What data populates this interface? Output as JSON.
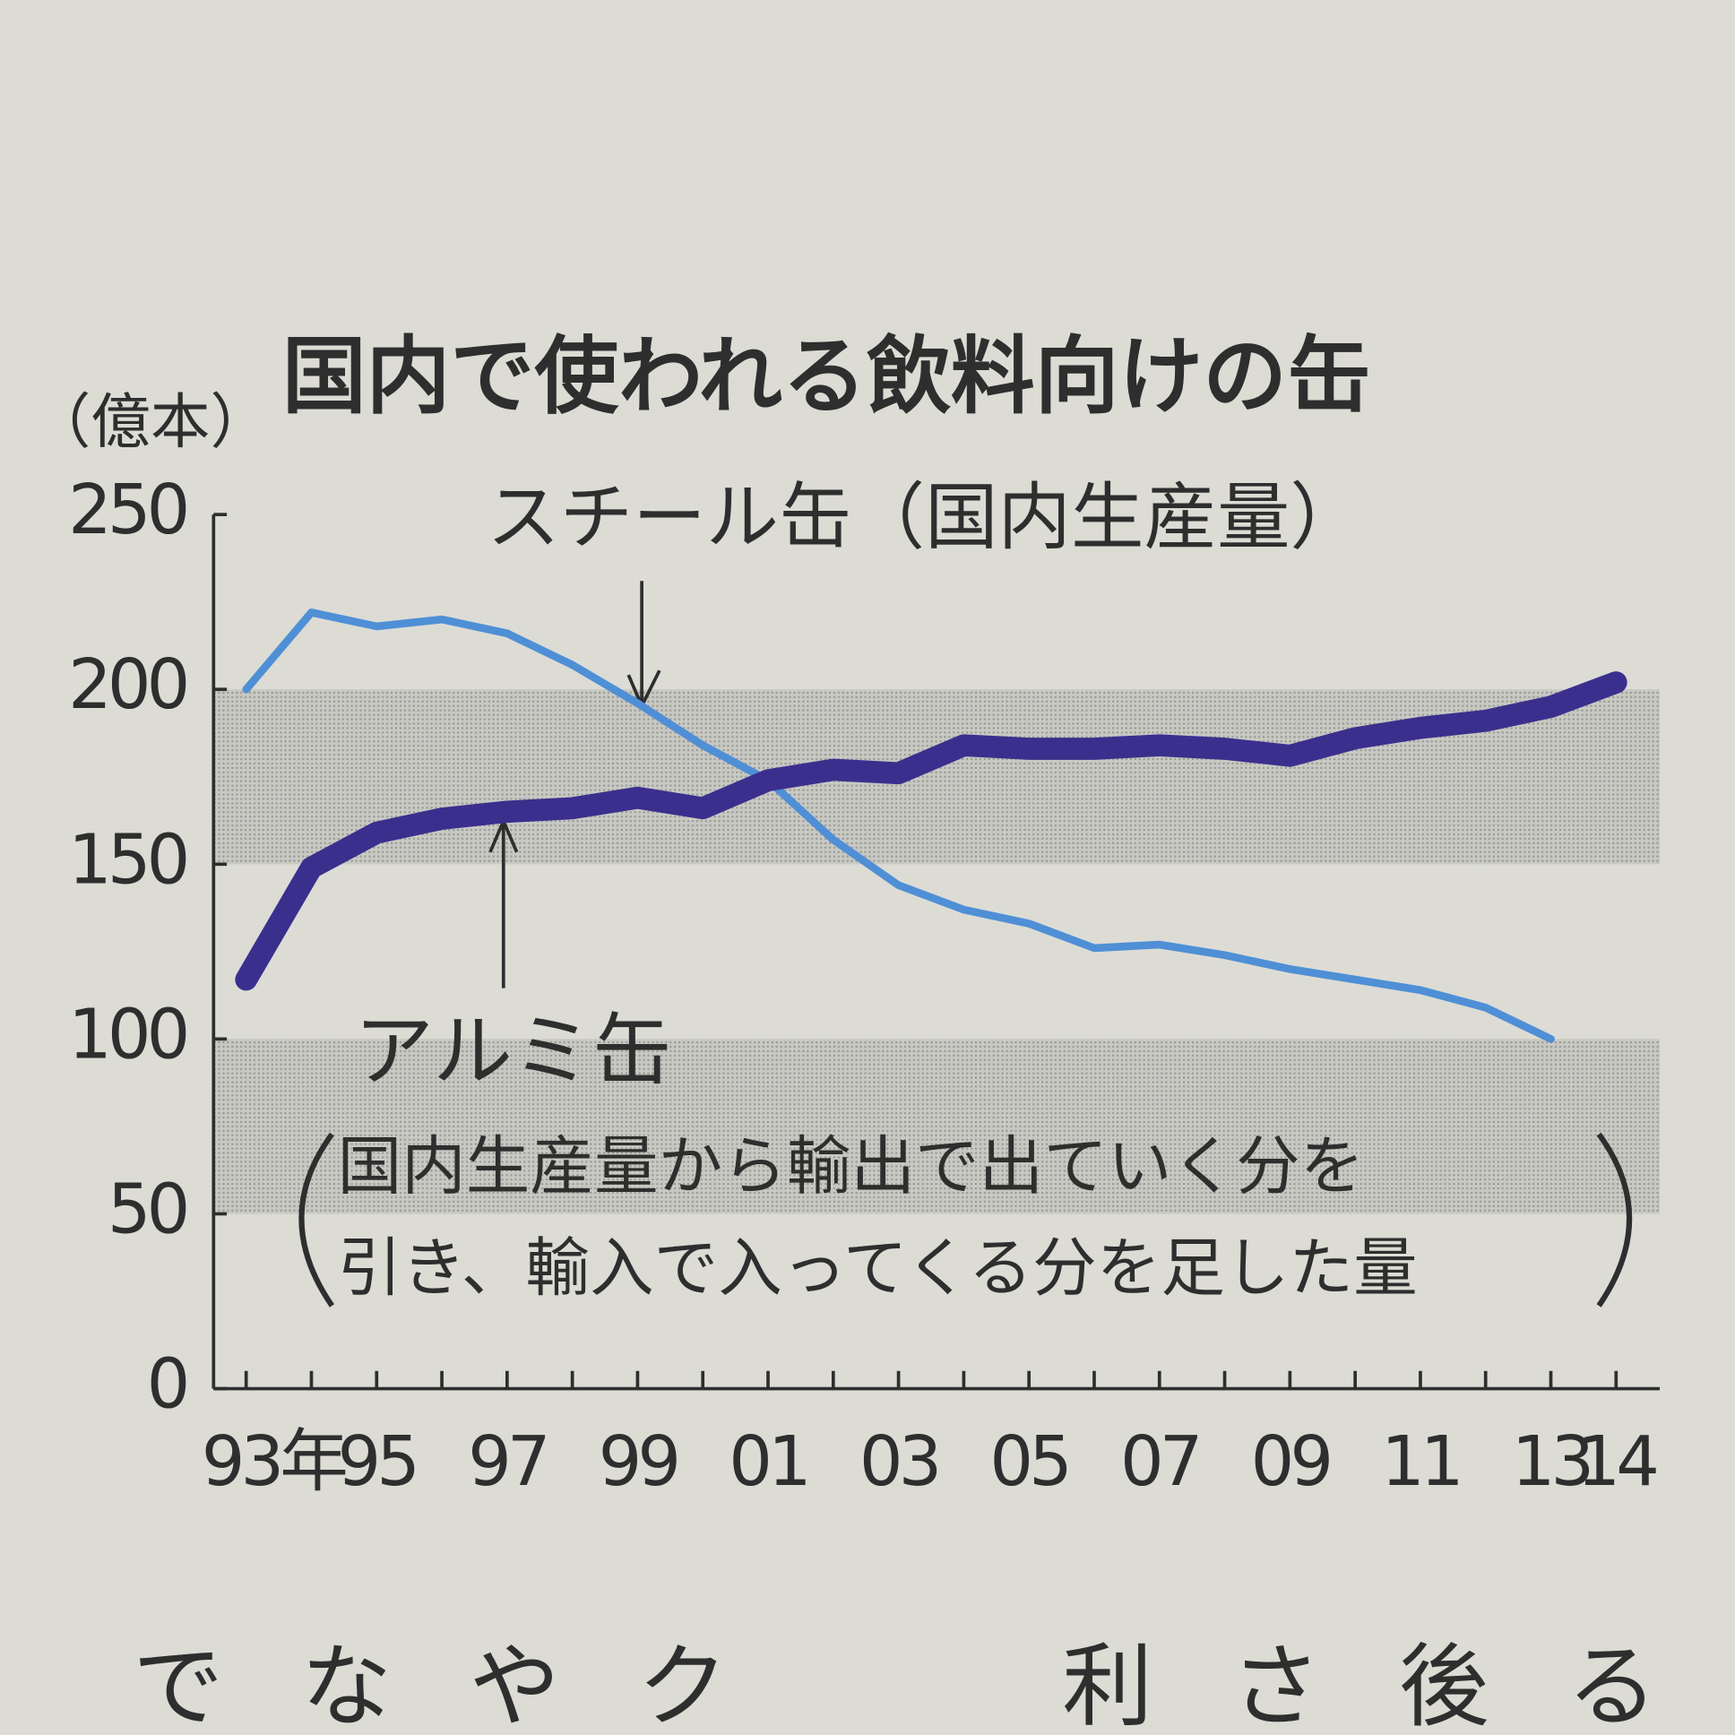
{
  "chart_data": {
    "type": "line",
    "title": "国内で使われる飲料向けの缶",
    "y_unit": "（億本）",
    "annotations": {
      "steel": "スチール缶（国内生産量）",
      "aluminum": "アルミ缶",
      "aluminum_note": [
        "国内生産量から輸出で出ていく分を",
        "引き、輸入で入ってくる分を足した量"
      ]
    },
    "x": [
      1993,
      1994,
      1995,
      1996,
      1997,
      1998,
      1999,
      2000,
      2001,
      2002,
      2003,
      2004,
      2005,
      2006,
      2007,
      2008,
      2009,
      2010,
      2011,
      2012,
      2013,
      2014
    ],
    "series": [
      {
        "name": "スチール缶",
        "color": "#4f8fd6",
        "width": 7,
        "values": [
          200,
          222,
          218,
          220,
          216,
          207,
          196,
          184,
          174,
          157,
          144,
          137,
          133,
          126,
          127,
          124,
          120,
          117,
          114,
          109,
          100,
          null
        ]
      },
      {
        "name": "アルミ缶",
        "color": "#3b2f8e",
        "width": 20,
        "values": [
          117,
          149,
          159,
          163,
          165,
          166,
          169,
          166,
          174,
          177,
          176,
          184,
          183,
          183,
          184,
          183,
          181,
          186,
          189,
          191,
          195,
          202
        ]
      }
    ],
    "xlim": [
      1992.5,
      2014.5
    ],
    "xticks": [
      {
        "value": 1993,
        "label": "93年"
      },
      {
        "value": 1995,
        "label": "95"
      },
      {
        "value": 1997,
        "label": "97"
      },
      {
        "value": 1999,
        "label": "99"
      },
      {
        "value": 2001,
        "label": "01"
      },
      {
        "value": 2003,
        "label": "03"
      },
      {
        "value": 2005,
        "label": "05"
      },
      {
        "value": 2007,
        "label": "07"
      },
      {
        "value": 2009,
        "label": "09"
      },
      {
        "value": 2011,
        "label": "11"
      },
      {
        "value": 2013,
        "label": "13"
      },
      {
        "value": 2014,
        "label": "14"
      }
    ],
    "ylim": [
      0,
      250
    ],
    "yticks": [
      0,
      50,
      100,
      150,
      200,
      250
    ],
    "shaded_bands": [
      [
        150,
        200
      ],
      [
        50,
        100
      ]
    ],
    "body_text_fragments": [
      "でなやク",
      "利さ後る"
    ]
  }
}
